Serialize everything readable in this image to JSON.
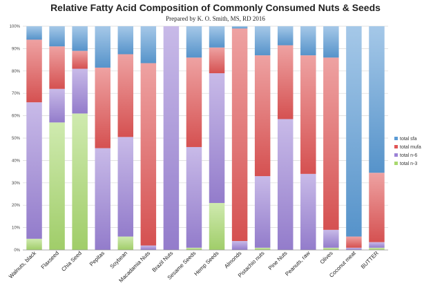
{
  "chart_data": {
    "type": "bar",
    "stacked": true,
    "percent": true,
    "title": "Relative Fatty Acid Composition of Commonly Consumed Nuts & Seeds",
    "subtitle": "Prepared by K. O. Smith, MS, RD 2016",
    "xlabel": "",
    "ylabel": "",
    "ylim": [
      0,
      100
    ],
    "yticks": [
      "0%",
      "10%",
      "20%",
      "30%",
      "40%",
      "50%",
      "60%",
      "70%",
      "80%",
      "90%",
      "100%"
    ],
    "grid": true,
    "legend_position": "right",
    "categories": [
      "Walnuts, black",
      "Flaxseed",
      "Chia Seed",
      "Pepitas",
      "Soybean",
      "Macadamia Nuts",
      "Brazil Nuts",
      "Sesame Seeds",
      "Hemp Seeds",
      "Almonds",
      "Pistachio nuts",
      "Pine Nuts",
      "Peanuts, raw",
      "Olives",
      "Coconut meat",
      "BUTTER"
    ],
    "series": [
      {
        "name": "total n-3",
        "color": "#a8d86e",
        "values": [
          5,
          57,
          61,
          0,
          6,
          0,
          0,
          1,
          21,
          0,
          1,
          0,
          0,
          1,
          0,
          1
        ]
      },
      {
        "name": "total n-6",
        "color": "#9b82d6",
        "values": [
          61,
          15,
          20,
          45.5,
          44.5,
          2,
          100,
          45,
          58,
          4,
          32,
          58.5,
          34,
          8,
          1,
          2.5
        ]
      },
      {
        "name": "total mufa",
        "color": "#e05555",
        "values": [
          28,
          19,
          8,
          36,
          37,
          81.5,
          0,
          40,
          11.5,
          95,
          54,
          33,
          53,
          77,
          5,
          31
        ]
      },
      {
        "name": "total sfa",
        "color": "#5b9bd5",
        "values": [
          6,
          9,
          11,
          18.5,
          12.5,
          16.5,
          0,
          14,
          9.5,
          1,
          13,
          8.5,
          13,
          14,
          94,
          65.5
        ]
      }
    ],
    "legend_order": [
      "total sfa",
      "total mufa",
      "total n-6",
      "total n-3"
    ]
  }
}
